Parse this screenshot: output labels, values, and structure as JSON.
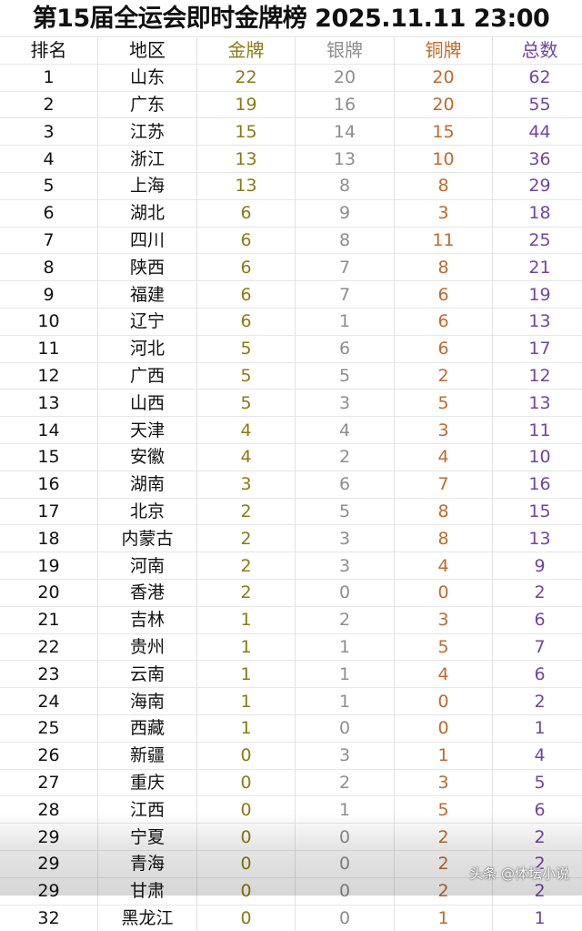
{
  "title": "第15届全运会即时金牌榜 2025.11.11 23:00",
  "colors": {
    "gold": "#8c7a12",
    "silver": "#8e8e8e",
    "bronze": "#c0692a",
    "total": "#7045a5"
  },
  "headers": [
    "排名",
    "地区",
    "金牌",
    "银牌",
    "铜牌",
    "总数"
  ],
  "rows": [
    [
      "1",
      "山东",
      "22",
      "20",
      "20",
      "62"
    ],
    [
      "2",
      "广东",
      "19",
      "16",
      "20",
      "55"
    ],
    [
      "3",
      "江苏",
      "15",
      "14",
      "15",
      "44"
    ],
    [
      "4",
      "浙江",
      "13",
      "13",
      "10",
      "36"
    ],
    [
      "5",
      "上海",
      "13",
      "8",
      "8",
      "29"
    ],
    [
      "6",
      "湖北",
      "6",
      "9",
      "3",
      "18"
    ],
    [
      "7",
      "四川",
      "6",
      "8",
      "11",
      "25"
    ],
    [
      "8",
      "陕西",
      "6",
      "7",
      "8",
      "21"
    ],
    [
      "9",
      "福建",
      "6",
      "7",
      "6",
      "19"
    ],
    [
      "10",
      "辽宁",
      "6",
      "1",
      "6",
      "13"
    ],
    [
      "11",
      "河北",
      "5",
      "6",
      "6",
      "17"
    ],
    [
      "12",
      "广西",
      "5",
      "5",
      "2",
      "12"
    ],
    [
      "13",
      "山西",
      "5",
      "3",
      "5",
      "13"
    ],
    [
      "14",
      "天津",
      "4",
      "4",
      "3",
      "11"
    ],
    [
      "15",
      "安徽",
      "4",
      "2",
      "4",
      "10"
    ],
    [
      "16",
      "湖南",
      "3",
      "6",
      "7",
      "16"
    ],
    [
      "17",
      "北京",
      "2",
      "5",
      "8",
      "15"
    ],
    [
      "18",
      "内蒙古",
      "2",
      "3",
      "8",
      "13"
    ],
    [
      "19",
      "河南",
      "2",
      "3",
      "4",
      "9"
    ],
    [
      "20",
      "香港",
      "2",
      "0",
      "0",
      "2"
    ],
    [
      "21",
      "吉林",
      "1",
      "2",
      "3",
      "6"
    ],
    [
      "22",
      "贵州",
      "1",
      "1",
      "5",
      "7"
    ],
    [
      "23",
      "云南",
      "1",
      "1",
      "4",
      "6"
    ],
    [
      "24",
      "海南",
      "1",
      "1",
      "0",
      "2"
    ],
    [
      "25",
      "西藏",
      "1",
      "0",
      "0",
      "1"
    ],
    [
      "26",
      "新疆",
      "0",
      "3",
      "1",
      "4"
    ],
    [
      "27",
      "重庆",
      "0",
      "2",
      "3",
      "5"
    ],
    [
      "28",
      "江西",
      "0",
      "1",
      "5",
      "6"
    ],
    [
      "29",
      "宁夏",
      "0",
      "0",
      "2",
      "2"
    ],
    [
      "29",
      "青海",
      "0",
      "0",
      "2",
      "2"
    ],
    [
      "29",
      "甘肃",
      "0",
      "0",
      "2",
      "2"
    ],
    [
      "32",
      "黑龙江",
      "0",
      "0",
      "1",
      "1"
    ]
  ],
  "watermark": "头条 @体坛小说"
}
